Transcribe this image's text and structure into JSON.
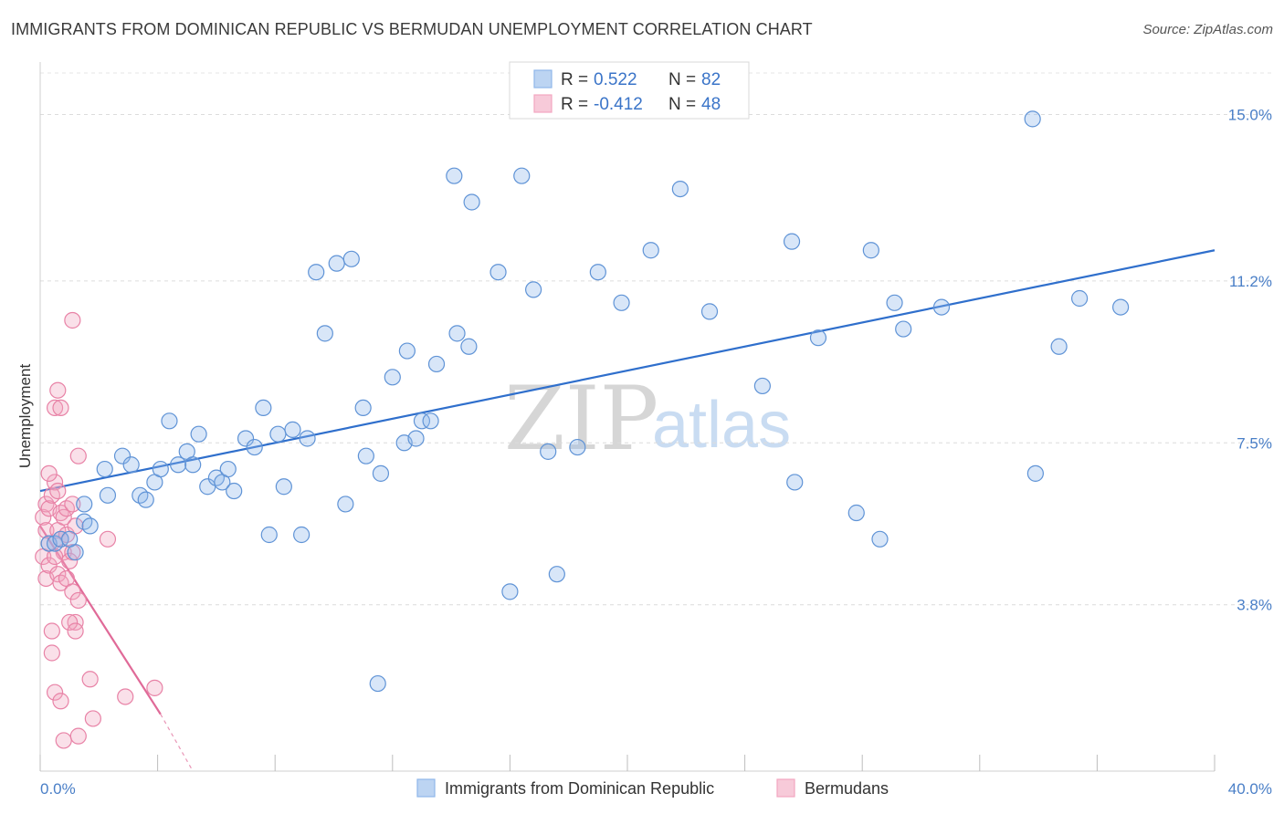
{
  "header": {
    "title": "IMMIGRANTS FROM DOMINICAN REPUBLIC VS BERMUDAN UNEMPLOYMENT CORRELATION CHART",
    "source": "Source: ZipAtlas.com"
  },
  "watermark": {
    "zip": "ZIP",
    "atlas": "atlas"
  },
  "chart_data": {
    "type": "scatter",
    "ylabel": "Unemployment",
    "xlim": [
      0,
      40
    ],
    "ylim": [
      0,
      16.2
    ],
    "y_ticks": [
      {
        "value": 3.8,
        "label": "3.8%"
      },
      {
        "value": 7.5,
        "label": "7.5%"
      },
      {
        "value": 11.2,
        "label": "11.2%"
      },
      {
        "value": 15.0,
        "label": "15.0%"
      }
    ],
    "x_ticks": [
      {
        "value": 0,
        "label": "0.0%"
      },
      {
        "value": 40,
        "label": "40.0%"
      }
    ],
    "grid": true,
    "legend": {
      "position": "top-center",
      "entries": [
        {
          "r_label": "R =",
          "r_value": "0.522",
          "n_label": "N =",
          "n_value": "82",
          "color": "#8fb7ea"
        },
        {
          "r_label": "R =",
          "r_value": "-0.412",
          "n_label": "N =",
          "n_value": "48",
          "color": "#f2a7c0"
        }
      ]
    },
    "series": [
      {
        "name": "Immigrants from Dominican Republic",
        "color": "#8fb7ea",
        "edge": "#5f93d6",
        "trend": {
          "x": [
            0,
            40
          ],
          "y": [
            6.4,
            11.9
          ],
          "color": "#2f6fcc"
        },
        "points": [
          [
            0.3,
            5.2
          ],
          [
            0.5,
            5.2
          ],
          [
            0.7,
            5.3
          ],
          [
            1.2,
            5.0
          ],
          [
            1.0,
            5.3
          ],
          [
            1.5,
            5.7
          ],
          [
            1.7,
            5.6
          ],
          [
            1.5,
            6.1
          ],
          [
            2.3,
            6.3
          ],
          [
            2.2,
            6.9
          ],
          [
            2.8,
            7.2
          ],
          [
            3.1,
            7.0
          ],
          [
            3.4,
            6.3
          ],
          [
            3.6,
            6.2
          ],
          [
            3.9,
            6.6
          ],
          [
            4.1,
            6.9
          ],
          [
            4.4,
            8.0
          ],
          [
            4.7,
            7.0
          ],
          [
            5.0,
            7.3
          ],
          [
            5.2,
            7.0
          ],
          [
            5.4,
            7.7
          ],
          [
            5.7,
            6.5
          ],
          [
            6.0,
            6.7
          ],
          [
            6.2,
            6.6
          ],
          [
            6.4,
            6.9
          ],
          [
            6.6,
            6.4
          ],
          [
            7.0,
            7.6
          ],
          [
            7.3,
            7.4
          ],
          [
            7.6,
            8.3
          ],
          [
            7.8,
            5.4
          ],
          [
            8.1,
            7.7
          ],
          [
            8.3,
            6.5
          ],
          [
            8.6,
            7.8
          ],
          [
            8.9,
            5.4
          ],
          [
            9.1,
            7.6
          ],
          [
            9.4,
            11.4
          ],
          [
            9.7,
            10.0
          ],
          [
            10.1,
            11.6
          ],
          [
            10.4,
            6.1
          ],
          [
            10.6,
            11.7
          ],
          [
            11.0,
            8.3
          ],
          [
            11.1,
            7.2
          ],
          [
            11.6,
            6.8
          ],
          [
            12.0,
            9.0
          ],
          [
            12.4,
            7.5
          ],
          [
            12.5,
            9.6
          ],
          [
            12.8,
            7.6
          ],
          [
            13.0,
            8.0
          ],
          [
            13.5,
            9.3
          ],
          [
            13.3,
            8.0
          ],
          [
            14.1,
            13.6
          ],
          [
            14.2,
            10.0
          ],
          [
            14.6,
            9.7
          ],
          [
            14.7,
            13.0
          ],
          [
            15.6,
            11.4
          ],
          [
            16.0,
            4.1
          ],
          [
            16.4,
            13.6
          ],
          [
            16.8,
            11.0
          ],
          [
            17.3,
            7.3
          ],
          [
            17.6,
            4.5
          ],
          [
            18.3,
            7.4
          ],
          [
            19.0,
            11.4
          ],
          [
            19.8,
            10.7
          ],
          [
            20.8,
            11.9
          ],
          [
            21.8,
            13.3
          ],
          [
            22.8,
            10.5
          ],
          [
            24.6,
            8.8
          ],
          [
            25.7,
            6.6
          ],
          [
            25.6,
            12.1
          ],
          [
            26.5,
            9.9
          ],
          [
            27.8,
            5.9
          ],
          [
            28.3,
            11.9
          ],
          [
            28.6,
            5.3
          ],
          [
            29.1,
            10.7
          ],
          [
            29.4,
            10.1
          ],
          [
            30.7,
            10.6
          ],
          [
            33.8,
            14.9
          ],
          [
            33.9,
            6.8
          ],
          [
            34.7,
            9.7
          ],
          [
            35.4,
            10.8
          ],
          [
            36.8,
            10.6
          ],
          [
            11.5,
            2.0
          ]
        ]
      },
      {
        "name": "Bermudans",
        "color": "#f2a7c0",
        "edge": "#e882a6",
        "trend": {
          "x": [
            0,
            4.1
          ],
          "y": [
            5.6,
            1.3
          ],
          "color": "#e06a98",
          "dash_x": [
            4.1,
            5.2
          ],
          "dash_y": [
            1.3,
            0.0
          ]
        },
        "points": [
          [
            0.1,
            5.8
          ],
          [
            0.2,
            6.1
          ],
          [
            0.3,
            6.0
          ],
          [
            0.2,
            5.5
          ],
          [
            0.3,
            5.2
          ],
          [
            0.1,
            4.9
          ],
          [
            0.2,
            4.4
          ],
          [
            0.3,
            4.7
          ],
          [
            0.4,
            6.3
          ],
          [
            0.5,
            6.6
          ],
          [
            0.6,
            6.4
          ],
          [
            0.7,
            5.9
          ],
          [
            0.6,
            5.5
          ],
          [
            0.8,
            5.8
          ],
          [
            0.9,
            6.0
          ],
          [
            0.7,
            5.3
          ],
          [
            0.8,
            5.0
          ],
          [
            0.9,
            5.4
          ],
          [
            0.5,
            4.9
          ],
          [
            0.6,
            4.5
          ],
          [
            0.7,
            4.3
          ],
          [
            0.9,
            4.4
          ],
          [
            1.0,
            4.8
          ],
          [
            1.1,
            5.0
          ],
          [
            1.1,
            4.1
          ],
          [
            1.3,
            3.9
          ],
          [
            1.2,
            3.4
          ],
          [
            1.0,
            3.4
          ],
          [
            1.2,
            3.2
          ],
          [
            0.4,
            3.2
          ],
          [
            0.4,
            2.7
          ],
          [
            0.5,
            8.3
          ],
          [
            0.6,
            8.7
          ],
          [
            0.7,
            8.3
          ],
          [
            1.3,
            7.2
          ],
          [
            1.1,
            10.3
          ],
          [
            1.2,
            5.6
          ],
          [
            1.1,
            6.1
          ],
          [
            2.3,
            5.3
          ],
          [
            1.7,
            2.1
          ],
          [
            0.5,
            1.8
          ],
          [
            0.7,
            1.6
          ],
          [
            2.9,
            1.7
          ],
          [
            3.9,
            1.9
          ],
          [
            1.8,
            1.2
          ],
          [
            0.8,
            0.7
          ],
          [
            1.3,
            0.8
          ],
          [
            0.3,
            6.8
          ]
        ]
      }
    ]
  },
  "bottom_legend": [
    {
      "label": "Immigrants from Dominican Republic",
      "color": "#8fb7ea"
    },
    {
      "label": "Bermudans",
      "color": "#f2a7c0"
    }
  ]
}
